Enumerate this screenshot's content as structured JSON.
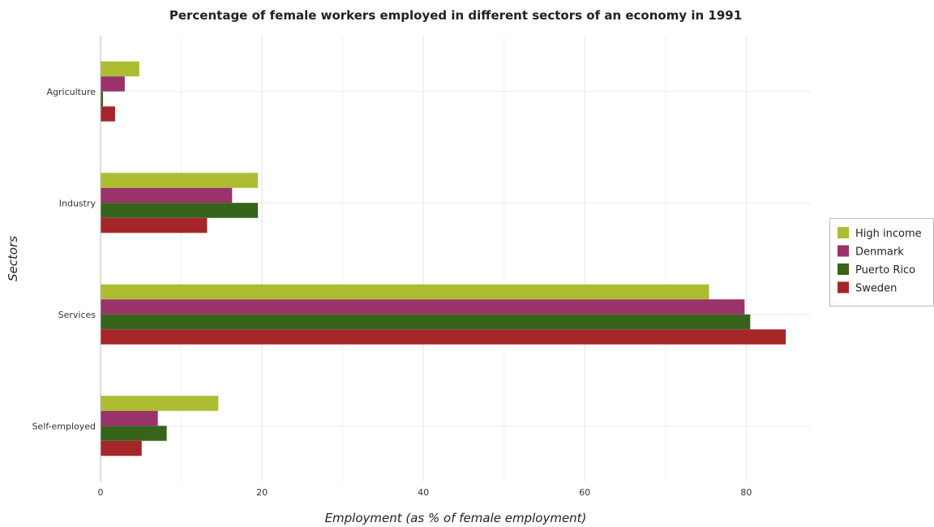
{
  "chart_data": {
    "type": "bar",
    "orientation": "horizontal",
    "title": "Percentage of female workers employed in different sectors of an economy in 1991",
    "xlabel": "Employment (as % of female employment)",
    "ylabel": "Sectors",
    "categories": [
      "Agriculture",
      "Industry",
      "Services",
      "Self-employed"
    ],
    "xlim": [
      0,
      88
    ],
    "xticks": [
      0,
      20,
      40,
      60,
      80
    ],
    "grid": true,
    "legend_position": "right",
    "series": [
      {
        "name": "High income",
        "color": "#aebc31",
        "values": [
          4.8,
          19.5,
          75.4,
          14.6
        ]
      },
      {
        "name": "Denmark",
        "color": "#99336a",
        "values": [
          3.0,
          16.3,
          79.8,
          7.1
        ]
      },
      {
        "name": "Puerto Rico",
        "color": "#37641b",
        "values": [
          0.3,
          19.5,
          80.5,
          8.2
        ]
      },
      {
        "name": "Sweden",
        "color": "#a52629",
        "values": [
          1.8,
          13.2,
          84.9,
          5.1
        ]
      }
    ]
  }
}
